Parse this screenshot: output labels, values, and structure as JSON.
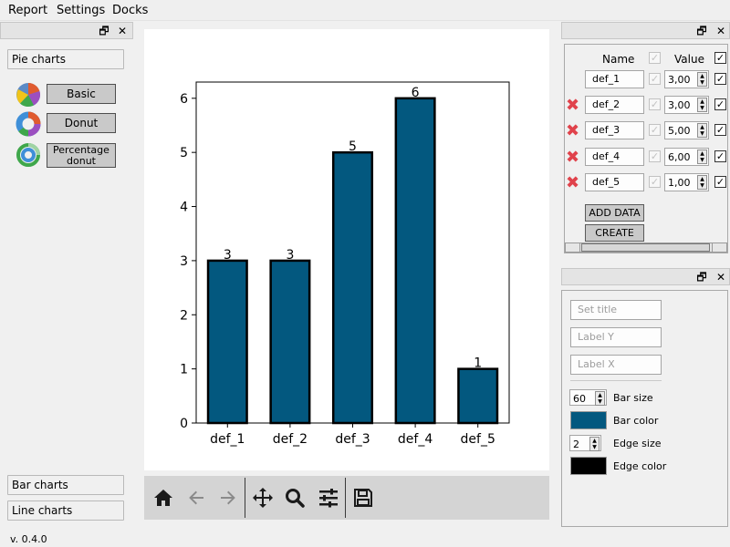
{
  "menu": {
    "items": [
      {
        "label": "Report"
      },
      {
        "label": "Settings"
      },
      {
        "label": "Docks"
      }
    ]
  },
  "left_dock": {
    "pie_charts_label": "Pie charts",
    "pie_types": [
      {
        "label": "Basic",
        "icon": "pie-icon"
      },
      {
        "label": "Donut",
        "icon": "donut-icon"
      },
      {
        "label": "Percentage donut",
        "icon": "percentage-donut-icon"
      }
    ],
    "bar_charts_label": "Bar charts",
    "line_charts_label": "Line charts",
    "version": "v. 0.4.0"
  },
  "data_dock": {
    "name_header": "Name",
    "value_header": "Value",
    "rows": [
      {
        "name": "def_1",
        "value": "3,00",
        "removable": false,
        "checked": true
      },
      {
        "name": "def_2",
        "value": "3,00",
        "removable": true,
        "checked": true
      },
      {
        "name": "def_3",
        "value": "5,00",
        "removable": true,
        "checked": true
      },
      {
        "name": "def_4",
        "value": "6,00",
        "removable": true,
        "checked": true
      },
      {
        "name": "def_5",
        "value": "1,00",
        "removable": true,
        "checked": true
      }
    ],
    "add_data_label": "ADD DATA",
    "create_label": "CREATE"
  },
  "style_dock": {
    "title_placeholder": "Set title",
    "label_y_placeholder": "Label Y",
    "label_x_placeholder": "Label X",
    "bar_size_value": "60",
    "bar_size_label": "Bar size",
    "bar_color_label": "Bar color",
    "bar_color": "#03587f",
    "edge_size_value": "2",
    "edge_size_label": "Edge size",
    "edge_color_label": "Edge color",
    "edge_color": "#000000"
  },
  "chart_data": {
    "type": "bar",
    "categories": [
      "def_1",
      "def_2",
      "def_3",
      "def_4",
      "def_5"
    ],
    "values": [
      3,
      3,
      5,
      6,
      1
    ],
    "data_labels": [
      "3",
      "3",
      "5",
      "6",
      "1"
    ],
    "ylim": [
      0,
      6.3
    ],
    "yticks": [
      0,
      1,
      2,
      3,
      4,
      5,
      6
    ],
    "bar_color": "#03587f",
    "edge_color": "#000000",
    "grid": false
  }
}
